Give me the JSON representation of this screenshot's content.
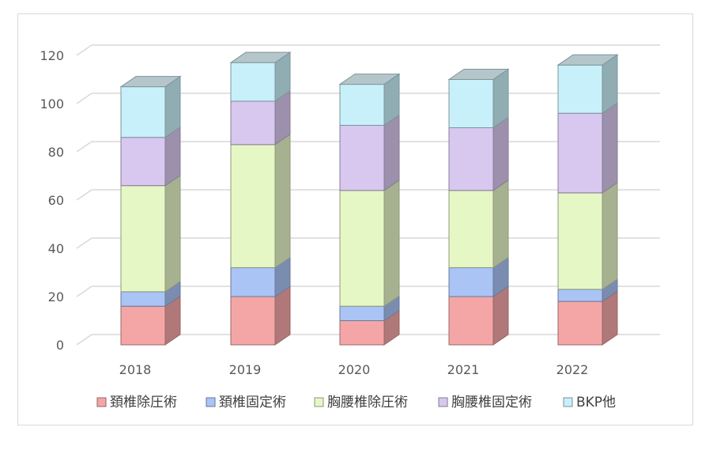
{
  "chart_data": {
    "type": "bar",
    "stacked": true,
    "style": "3d-column",
    "categories": [
      "2018",
      "2019",
      "2020",
      "2021",
      "2022"
    ],
    "series": [
      {
        "name": "頚椎除圧術",
        "values": [
          16,
          20,
          10,
          20,
          18
        ],
        "color": "#f4a6a6"
      },
      {
        "name": "頚椎固定術",
        "values": [
          6,
          12,
          6,
          12,
          5
        ],
        "color": "#a9c4f5"
      },
      {
        "name": "胸腰椎除圧術",
        "values": [
          44,
          51,
          48,
          32,
          40
        ],
        "color": "#e6f7c6"
      },
      {
        "name": "胸腰椎固定術",
        "values": [
          20,
          18,
          27,
          26,
          33
        ],
        "color": "#d8c8ef"
      },
      {
        "name": "BKP他",
        "values": [
          21,
          16,
          17,
          20,
          20
        ],
        "color": "#c8f0fa"
      }
    ],
    "yticks": [
      0,
      20,
      40,
      60,
      80,
      100,
      120
    ],
    "ylim": [
      0,
      120
    ],
    "grid": true,
    "legend": "bottom"
  }
}
